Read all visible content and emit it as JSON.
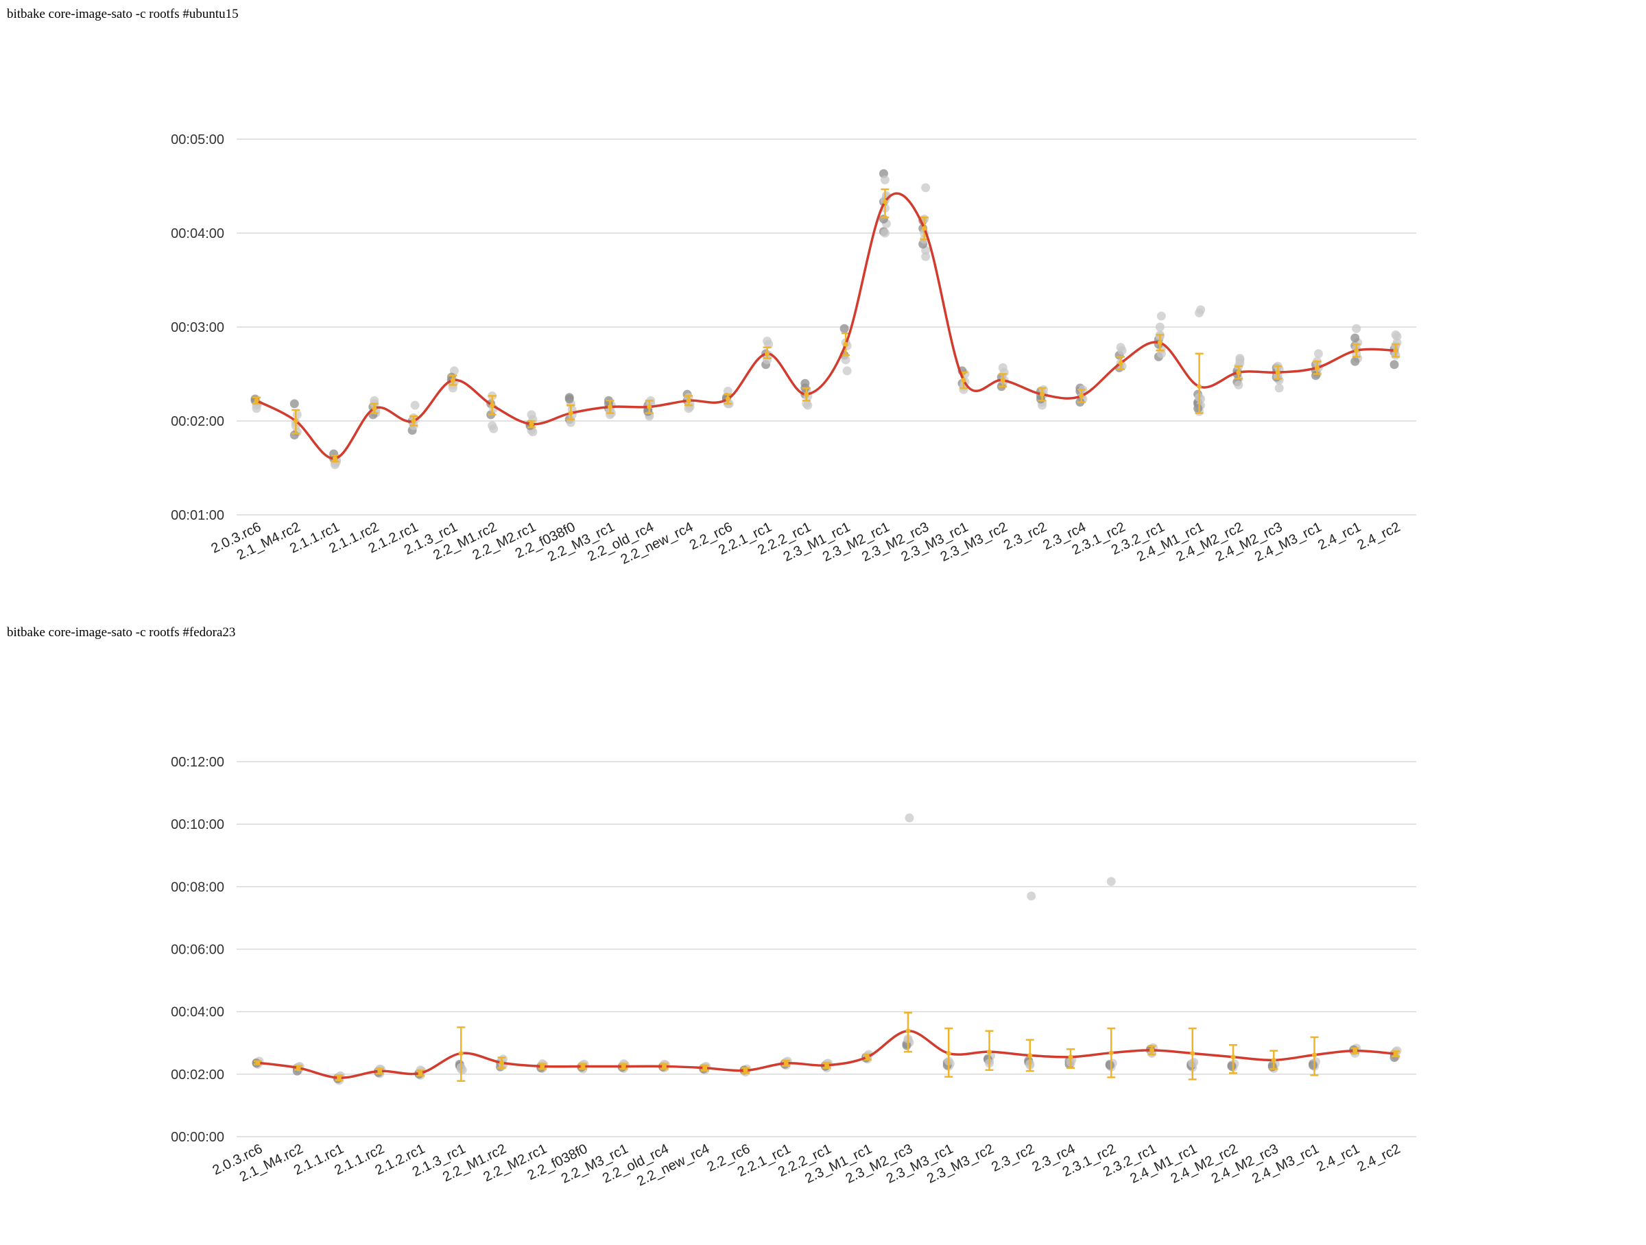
{
  "colors": {
    "trend": "#d13c2f",
    "error_bar": "#f0b429",
    "sample_light": "#c8c8c8",
    "sample_dark": "#8c8c8c",
    "grid": "#d9d9d9"
  },
  "chart_data": [
    {
      "type": "scatter",
      "title": "bitbake core-image-sato -c rootfs #ubuntu15",
      "xlabel": "",
      "ylabel": "",
      "y_unit": "seconds",
      "ylim": [
        60,
        300
      ],
      "yticks": [
        60,
        120,
        180,
        240,
        300
      ],
      "ytick_labels": [
        "00:01:00",
        "00:02:00",
        "00:03:00",
        "00:04:00",
        "00:05:00"
      ],
      "grid": true,
      "categories": [
        "2.0.3.rc6",
        "2.1_M4.rc2",
        "2.1.1.rc1",
        "2.1.1.rc2",
        "2.1.2.rc1",
        "2.1.3_rc1",
        "2.2_M1.rc2",
        "2.2_M2.rc1",
        "2.2_f038f0",
        "2.2_M3_rc1",
        "2.2_old_rc4",
        "2.2_new_rc4",
        "2.2_rc6",
        "2.2.1_rc1",
        "2.2.2_rc1",
        "2.3_M1_rc1",
        "2.3_M2_rc1",
        "2.3_M2_rc3",
        "2.3_M3_rc1",
        "2.3_M3_rc2",
        "2.3_rc2",
        "2.3_rc4",
        "2.3.1_rc2",
        "2.3.2_rc1",
        "2.4_M1_rc1",
        "2.4_M2_rc2",
        "2.4_M2_rc3",
        "2.4_M3_rc1",
        "2.4_rc1",
        "2.4_rc2"
      ],
      "series": [
        {
          "values": [
            133,
            120,
            96,
            128,
            120,
            146,
            130,
            118,
            125,
            129,
            129,
            133,
            134,
            163,
            137,
            169,
            260,
            243,
            146,
            146,
            137,
            136,
            157,
            170,
            142,
            151,
            151,
            154,
            165,
            165
          ]
        }
      ],
      "error_bars": [
        [
          131,
          135
        ],
        [
          112,
          127
        ],
        [
          94,
          98
        ],
        [
          125,
          131
        ],
        [
          117,
          123
        ],
        [
          143,
          149
        ],
        [
          124,
          136
        ],
        [
          116,
          120
        ],
        [
          121,
          130
        ],
        [
          125,
          133
        ],
        [
          125,
          133
        ],
        [
          130,
          136
        ],
        [
          131,
          137
        ],
        [
          160,
          167
        ],
        [
          133,
          141
        ],
        [
          162,
          176
        ],
        [
          250,
          268
        ],
        [
          236,
          250
        ],
        [
          141,
          151
        ],
        [
          142,
          150
        ],
        [
          133,
          141
        ],
        [
          132,
          140
        ],
        [
          153,
          161
        ],
        [
          165,
          175
        ],
        [
          125,
          163
        ],
        [
          147,
          155
        ],
        [
          147,
          155
        ],
        [
          150,
          158
        ],
        [
          161,
          169
        ],
        [
          161,
          169
        ]
      ],
      "samples": [
        [
          133,
          128,
          131,
          134,
          130
        ],
        [
          131,
          119,
          113,
          111,
          117,
          124
        ],
        [
          99,
          93,
          95,
          96,
          92,
          94
        ],
        [
          129,
          133,
          125,
          124,
          131,
          127
        ],
        [
          120,
          122,
          130,
          114,
          117,
          121
        ],
        [
          146,
          143,
          152,
          148,
          141,
          145
        ],
        [
          124,
          117,
          115,
          131,
          136,
          128
        ],
        [
          118,
          114,
          113,
          117,
          124,
          121
        ],
        [
          135,
          131,
          127,
          121,
          119,
          124,
          134
        ],
        [
          133,
          124,
          130,
          128,
          127,
          125,
          131
        ],
        [
          130,
          123,
          133,
          127,
          124,
          131,
          126
        ],
        [
          133,
          128,
          129,
          137,
          135,
          131
        ],
        [
          134,
          139,
          131,
          135,
          131
        ],
        [
          163,
          171,
          169,
          156,
          159,
          162
        ],
        [
          137,
          131,
          130,
          144,
          140,
          136,
          141
        ],
        [
          162,
          159,
          152,
          179,
          170,
          168
        ],
        [
          278,
          274,
          263,
          241,
          240,
          246,
          249,
          256,
          264,
          260,
          261
        ],
        [
          248,
          249,
          229,
          233,
          236,
          225,
          243,
          240,
          269
        ],
        [
          144,
          140,
          150,
          152,
          142,
          145
        ],
        [
          148,
          144,
          151,
          142,
          154,
          146
        ],
        [
          139,
          132,
          140,
          136,
          130,
          137,
          134
        ],
        [
          141,
          137,
          134,
          139,
          135,
          140,
          132
        ],
        [
          162,
          157,
          165,
          154,
          167,
          155
        ],
        [
          172,
          174,
          166,
          161,
          180,
          163,
          169,
          175,
          187
        ],
        [
          131,
          129,
          134,
          137,
          189,
          191,
          132,
          126,
          130,
          128,
          135
        ],
        [
          152,
          147,
          159,
          145,
          155,
          157,
          150,
          143,
          160
        ],
        [
          151,
          147,
          146,
          154,
          155,
          141,
          148,
          149,
          153
        ],
        [
          156,
          150,
          163,
          152,
          158,
          154,
          149
        ],
        [
          168,
          166,
          170,
          173,
          179,
          160,
          158,
          163
        ],
        [
          164,
          175,
          170,
          166,
          168,
          174,
          156,
          162
        ]
      ]
    },
    {
      "type": "scatter",
      "title": "bitbake core-image-sato -c rootfs #fedora23",
      "xlabel": "",
      "ylabel": "",
      "y_unit": "seconds",
      "ylim": [
        0,
        720
      ],
      "yticks": [
        0,
        120,
        240,
        360,
        480,
        600,
        720
      ],
      "ytick_labels": [
        "00:00:00",
        "00:02:00",
        "00:04:00",
        "00:06:00",
        "00:08:00",
        "00:10:00",
        "00:12:00"
      ],
      "grid": true,
      "categories": [
        "2.0.3.rc6",
        "2.1_M4.rc2",
        "2.1.1.rc1",
        "2.1.1.rc2",
        "2.1.2.rc1",
        "2.1.3_rc1",
        "2.2_M1.rc2",
        "2.2_M2.rc1",
        "2.2_f038f0",
        "2.2_M3_rc1",
        "2.2_old_rc4",
        "2.2_new_rc4",
        "2.2_rc6",
        "2.2.1_rc1",
        "2.2.2_rc1",
        "2.3_M1_rc1",
        "2.3_M2_rc3",
        "2.3_M3_rc1",
        "2.3_M3_rc2",
        "2.3_rc2",
        "2.3_rc4",
        "2.3.1_rc2",
        "2.3.2_rc1",
        "2.4_M1_rc1",
        "2.4_M2_rc2",
        "2.4_M2_rc3",
        "2.4_M3_rc1",
        "2.4_rc1",
        "2.4_rc2"
      ],
      "series": [
        {
          "values": [
            142,
            132,
            113,
            126,
            122,
            160,
            142,
            135,
            135,
            135,
            135,
            132,
            127,
            141,
            137,
            153,
            203,
            160,
            163,
            156,
            153,
            161,
            166,
            160,
            153,
            147,
            157,
            165,
            159
          ]
        }
      ],
      "error_bars": [
        [
          139,
          145
        ],
        [
          128,
          136
        ],
        [
          108,
          118
        ],
        [
          121,
          131
        ],
        [
          117,
          127
        ],
        [
          107,
          210
        ],
        [
          132,
          152
        ],
        [
          130,
          140
        ],
        [
          130,
          140
        ],
        [
          130,
          140
        ],
        [
          130,
          140
        ],
        [
          127,
          137
        ],
        [
          122,
          132
        ],
        [
          136,
          146
        ],
        [
          132,
          142
        ],
        [
          148,
          158
        ],
        [
          163,
          238
        ],
        [
          115,
          208
        ],
        [
          128,
          203
        ],
        [
          126,
          186
        ],
        [
          132,
          168
        ],
        [
          114,
          208
        ],
        [
          158,
          174
        ],
        [
          110,
          208
        ],
        [
          122,
          176
        ],
        [
          130,
          165
        ],
        [
          118,
          191
        ],
        [
          160,
          170
        ],
        [
          154,
          164
        ]
      ],
      "samples": [
        [
          142,
          139,
          145,
          141
        ],
        [
          132,
          128,
          135,
          126,
          134
        ],
        [
          113,
          108,
          117,
          111,
          115
        ],
        [
          126,
          121,
          129,
          123,
          130
        ],
        [
          122,
          118,
          126,
          120,
          128
        ],
        [
          139,
          130,
          128,
          136,
          133
        ],
        [
          142,
          138,
          149,
          134,
          145,
          137
        ],
        [
          135,
          131,
          138,
          132,
          140
        ],
        [
          135,
          130,
          139,
          133,
          138
        ],
        [
          135,
          131,
          138,
          133,
          140
        ],
        [
          135,
          132,
          138,
          134,
          139
        ],
        [
          132,
          128,
          135,
          130,
          134
        ],
        [
          127,
          124,
          130,
          128
        ],
        [
          141,
          137,
          145,
          139,
          143
        ],
        [
          137,
          132,
          141,
          135,
          140
        ],
        [
          153,
          149,
          158,
          151,
          155
        ],
        [
          178,
          185,
          181,
          175,
          188,
          612
        ],
        [
          142,
          135,
          140,
          137,
          145
        ],
        [
          150,
          145,
          155,
          148,
          141
        ],
        [
          143,
          137,
          462,
          146,
          140
        ],
        [
          145,
          140,
          148,
          139,
          143
        ],
        [
          139,
          134,
          141,
          137,
          490
        ],
        [
          166,
          162,
          171,
          168,
          160
        ],
        [
          139,
          133,
          143,
          136,
          141
        ],
        [
          137,
          133,
          140,
          135
        ],
        [
          137,
          131,
          140,
          134
        ],
        [
          140,
          135,
          144,
          137
        ],
        [
          165,
          160,
          170,
          167
        ],
        [
          159,
          154,
          165,
          152,
          163
        ]
      ]
    }
  ]
}
